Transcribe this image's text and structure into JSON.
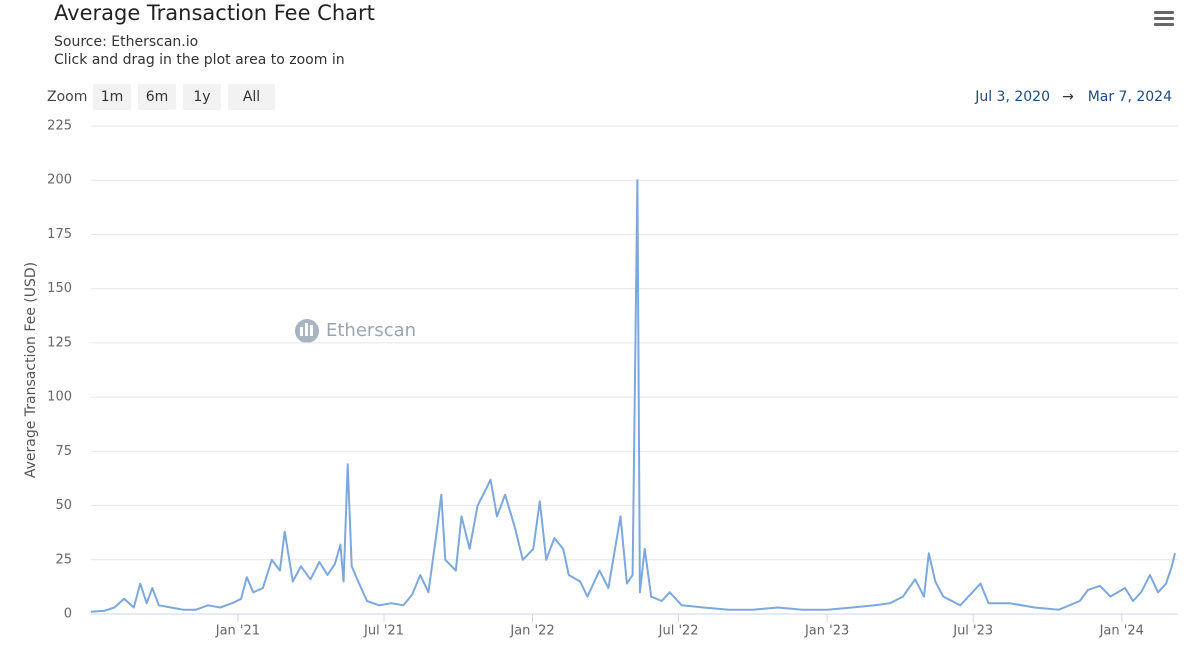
{
  "chart_data": {
    "type": "line",
    "title": "Average Transaction Fee Chart",
    "source": "Source: Etherscan.io",
    "subtitle": "Click and drag in the plot area to zoom in",
    "zoom_label": "Zoom",
    "zoom_buttons": [
      "1m",
      "6m",
      "1y",
      "All"
    ],
    "range_start": "Jul 3, 2020",
    "range_arrow": "→",
    "range_end": "Mar 7, 2024",
    "watermark": "Etherscan",
    "y_label": "Average Transaction Fee (USD)",
    "color": "#7ca8de",
    "grid": true,
    "xlim": [
      "2020-07-03",
      "2024-03-07"
    ],
    "xticks": [
      {
        "value": "2021-01-01",
        "label": "Jan '21"
      },
      {
        "value": "2021-07-01",
        "label": "Jul '21"
      },
      {
        "value": "2022-01-01",
        "label": "Jan '22"
      },
      {
        "value": "2022-07-01",
        "label": "Jul '22"
      },
      {
        "value": "2023-01-01",
        "label": "Jan '23"
      },
      {
        "value": "2023-07-01",
        "label": "Jul '23"
      },
      {
        "value": "2024-01-01",
        "label": "Jan '24"
      }
    ],
    "ylim": [
      0,
      225
    ],
    "yticks": [
      0,
      25,
      50,
      75,
      100,
      125,
      150,
      175,
      200,
      225
    ],
    "x": [
      "2020-07-03",
      "2020-07-20",
      "2020-08-01",
      "2020-08-13",
      "2020-08-25",
      "2020-09-02",
      "2020-09-10",
      "2020-09-17",
      "2020-09-25",
      "2020-10-10",
      "2020-10-25",
      "2020-11-10",
      "2020-11-25",
      "2020-12-10",
      "2020-12-25",
      "2021-01-05",
      "2021-01-12",
      "2021-01-20",
      "2021-02-01",
      "2021-02-12",
      "2021-02-22",
      "2021-02-28",
      "2021-03-10",
      "2021-03-20",
      "2021-04-01",
      "2021-04-12",
      "2021-04-22",
      "2021-05-01",
      "2021-05-08",
      "2021-05-12",
      "2021-05-17",
      "2021-05-22",
      "2021-05-30",
      "2021-06-10",
      "2021-06-25",
      "2021-07-10",
      "2021-07-25",
      "2021-08-05",
      "2021-08-15",
      "2021-08-25",
      "2021-09-05",
      "2021-09-10",
      "2021-09-15",
      "2021-09-28",
      "2021-10-05",
      "2021-10-15",
      "2021-10-25",
      "2021-11-05",
      "2021-11-10",
      "2021-11-18",
      "2021-11-28",
      "2021-12-10",
      "2021-12-20",
      "2022-01-02",
      "2022-01-10",
      "2022-01-18",
      "2022-01-28",
      "2022-02-08",
      "2022-02-15",
      "2022-03-01",
      "2022-03-10",
      "2022-03-25",
      "2022-04-05",
      "2022-04-20",
      "2022-04-28",
      "2022-05-05",
      "2022-05-11",
      "2022-05-14",
      "2022-05-20",
      "2022-05-28",
      "2022-06-10",
      "2022-06-20",
      "2022-07-05",
      "2022-08-01",
      "2022-09-01",
      "2022-10-01",
      "2022-11-01",
      "2022-12-01",
      "2023-01-01",
      "2023-02-01",
      "2023-03-01",
      "2023-03-20",
      "2023-04-05",
      "2023-04-20",
      "2023-05-01",
      "2023-05-07",
      "2023-05-15",
      "2023-05-25",
      "2023-06-15",
      "2023-07-10",
      "2023-07-20",
      "2023-08-15",
      "2023-09-15",
      "2023-10-15",
      "2023-11-10",
      "2023-11-20",
      "2023-12-05",
      "2023-12-18",
      "2024-01-05",
      "2024-01-15",
      "2024-01-25",
      "2024-02-05",
      "2024-02-15",
      "2024-02-25",
      "2024-03-03",
      "2024-03-07"
    ],
    "values": [
      1,
      1.5,
      3,
      7,
      3,
      14,
      5,
      12,
      4,
      3,
      2,
      2,
      4,
      3,
      5,
      7,
      17,
      10,
      12,
      25,
      20,
      38,
      15,
      22,
      16,
      24,
      18,
      23,
      32,
      15,
      69,
      22,
      15,
      6,
      4,
      5,
      4,
      9,
      18,
      10,
      40,
      55,
      25,
      20,
      45,
      30,
      50,
      58,
      62,
      45,
      55,
      40,
      25,
      30,
      52,
      25,
      35,
      30,
      18,
      15,
      8,
      20,
      12,
      45,
      14,
      18,
      200,
      10,
      30,
      8,
      6,
      10,
      4,
      3,
      2,
      2,
      3,
      2,
      2,
      3,
      4,
      5,
      8,
      16,
      8,
      28,
      15,
      8,
      4,
      14,
      5,
      5,
      3,
      2,
      6,
      11,
      13,
      8,
      12,
      6,
      10,
      18,
      10,
      14,
      22,
      28
    ]
  }
}
